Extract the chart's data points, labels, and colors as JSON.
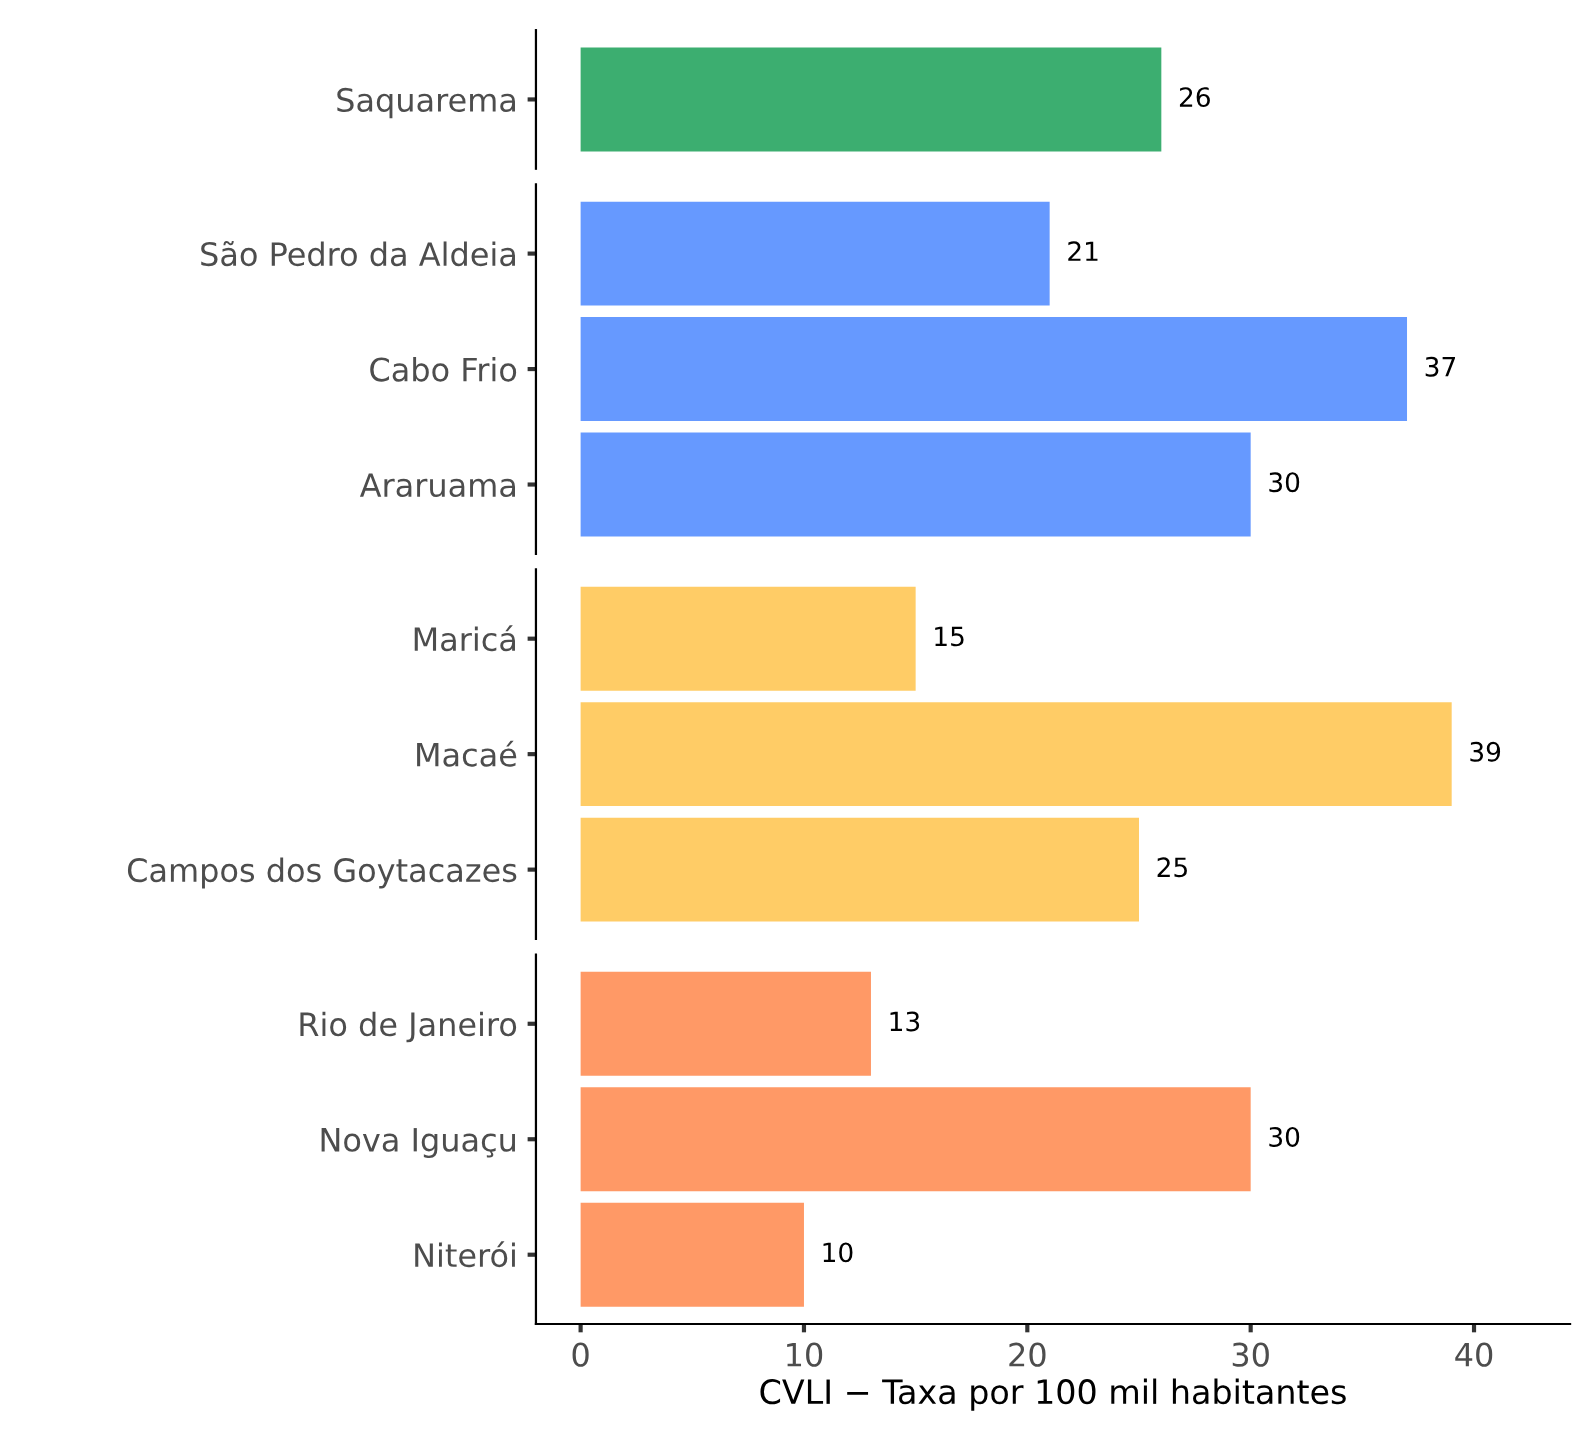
{
  "chart_data": [
    {
      "type": "bar",
      "orientation": "horizontal",
      "categories": [
        "Saquarema"
      ],
      "series": [
        {
          "color": "#3cae70",
          "values": [
            26
          ]
        }
      ],
      "data_labels": true,
      "tick_labels": "y"
    },
    {
      "type": "bar",
      "orientation": "horizontal",
      "categories": [
        "São Pedro da Aldeia",
        "Cabo Frio",
        "Araruama"
      ],
      "series": [
        {
          "color": "#6699ff",
          "values": [
            21,
            37,
            30
          ]
        }
      ],
      "data_labels": true,
      "tick_labels": "y"
    },
    {
      "type": "bar",
      "orientation": "horizontal",
      "categories": [
        "Maricá",
        "Macaé",
        "Campos dos Goytacazes"
      ],
      "series": [
        {
          "color": "#ffcc66",
          "values": [
            15,
            39,
            25
          ]
        }
      ],
      "data_labels": true,
      "tick_labels": "y"
    },
    {
      "type": "bar",
      "orientation": "horizontal",
      "categories": [
        "Rio de Janeiro",
        "Nova Iguaçu",
        "Niterói"
      ],
      "series": [
        {
          "color": "#ff9966",
          "values": [
            13,
            30,
            10
          ]
        }
      ],
      "data_labels": true,
      "xlim": [
        -2,
        44.3
      ],
      "xticks": [
        0,
        10,
        20,
        30,
        40
      ],
      "xlabel": "CVLI − Taxa por 100 mil habitantes"
    }
  ]
}
